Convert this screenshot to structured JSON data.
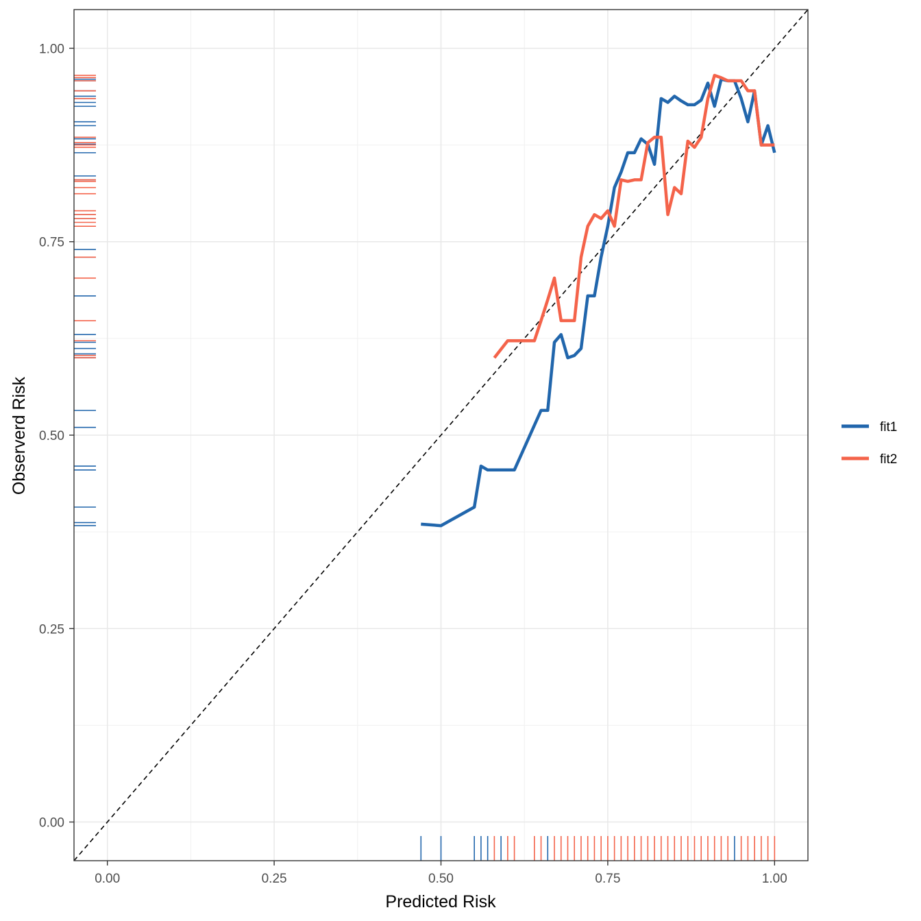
{
  "chart_data": {
    "type": "line",
    "title": "",
    "xlabel": "Predicted Risk",
    "ylabel": "Observerd Risk",
    "xlim": [
      -0.05,
      1.05
    ],
    "ylim": [
      -0.05,
      1.05
    ],
    "grid": true,
    "legend_position": "right",
    "x_ticks": [
      "0.00",
      "0.25",
      "0.50",
      "0.75",
      "1.00"
    ],
    "y_ticks": [
      "0.00",
      "0.25",
      "0.50",
      "0.75",
      "1.00"
    ],
    "reference_line": {
      "style": "dashed",
      "color": "#000000",
      "slope": 1,
      "intercept": 0
    },
    "series": [
      {
        "name": "fit1",
        "color": "#2166ac",
        "x": [
          0.47,
          0.5,
          0.55,
          0.56,
          0.57,
          0.61,
          0.65,
          0.66,
          0.67,
          0.68,
          0.69,
          0.7,
          0.71,
          0.72,
          0.73,
          0.74,
          0.75,
          0.76,
          0.77,
          0.78,
          0.79,
          0.8,
          0.81,
          0.82,
          0.83,
          0.84,
          0.85,
          0.86,
          0.87,
          0.88,
          0.89,
          0.9,
          0.91,
          0.92,
          0.93,
          0.94,
          0.95,
          0.96,
          0.97,
          0.98,
          0.99,
          1.0
        ],
        "y": [
          0.385,
          0.383,
          0.407,
          0.46,
          0.455,
          0.455,
          0.532,
          0.532,
          0.62,
          0.63,
          0.6,
          0.603,
          0.612,
          0.68,
          0.68,
          0.73,
          0.77,
          0.82,
          0.84,
          0.865,
          0.865,
          0.883,
          0.876,
          0.85,
          0.935,
          0.93,
          0.938,
          0.932,
          0.927,
          0.927,
          0.933,
          0.955,
          0.925,
          0.96,
          0.958,
          0.958,
          0.935,
          0.905,
          0.945,
          0.875,
          0.9,
          0.865
        ]
      },
      {
        "name": "fit2",
        "color": "#f4634a",
        "x": [
          0.58,
          0.6,
          0.61,
          0.62,
          0.63,
          0.64,
          0.65,
          0.66,
          0.67,
          0.68,
          0.69,
          0.7,
          0.71,
          0.72,
          0.73,
          0.74,
          0.75,
          0.76,
          0.77,
          0.78,
          0.79,
          0.8,
          0.81,
          0.82,
          0.83,
          0.84,
          0.85,
          0.86,
          0.87,
          0.88,
          0.89,
          0.9,
          0.91,
          0.92,
          0.93,
          0.94,
          0.95,
          0.96,
          0.97,
          0.98,
          0.99,
          1.0
        ],
        "y": [
          0.6,
          0.622,
          0.622,
          0.622,
          0.622,
          0.622,
          0.648,
          0.675,
          0.703,
          0.648,
          0.648,
          0.648,
          0.73,
          0.77,
          0.785,
          0.78,
          0.79,
          0.77,
          0.83,
          0.828,
          0.83,
          0.83,
          0.878,
          0.885,
          0.885,
          0.785,
          0.82,
          0.812,
          0.88,
          0.872,
          0.885,
          0.935,
          0.965,
          0.962,
          0.958,
          0.958,
          0.958,
          0.945,
          0.945,
          0.875,
          0.875,
          0.875
        ]
      }
    ],
    "rug_x": {
      "fit1": [
        0.47,
        0.5,
        0.55,
        0.56,
        0.57,
        0.59,
        0.66,
        0.94
      ],
      "fit2": [
        0.58,
        0.6,
        0.61,
        0.64,
        0.65,
        0.67,
        0.68,
        0.69,
        0.7,
        0.71,
        0.72,
        0.73,
        0.74,
        0.75,
        0.76,
        0.77,
        0.78,
        0.79,
        0.8,
        0.81,
        0.82,
        0.83,
        0.84,
        0.85,
        0.86,
        0.87,
        0.88,
        0.89,
        0.9,
        0.91,
        0.92,
        0.93,
        0.95,
        0.96,
        0.97,
        0.98,
        0.99,
        1.0
      ]
    },
    "rug_y": {
      "fit1": [
        0.383,
        0.387,
        0.407,
        0.455,
        0.46,
        0.51,
        0.532,
        0.6,
        0.605,
        0.612,
        0.62,
        0.63,
        0.68,
        0.73,
        0.74,
        0.78,
        0.785,
        0.83,
        0.835,
        0.865,
        0.876,
        0.883,
        0.9,
        0.905,
        0.925,
        0.93,
        0.935,
        0.938,
        0.945,
        0.958,
        0.96
      ],
      "fit2": [
        0.6,
        0.603,
        0.622,
        0.648,
        0.703,
        0.73,
        0.77,
        0.775,
        0.78,
        0.785,
        0.79,
        0.812,
        0.82,
        0.828,
        0.83,
        0.872,
        0.875,
        0.878,
        0.885,
        0.935,
        0.945,
        0.958,
        0.962,
        0.965
      ]
    }
  }
}
